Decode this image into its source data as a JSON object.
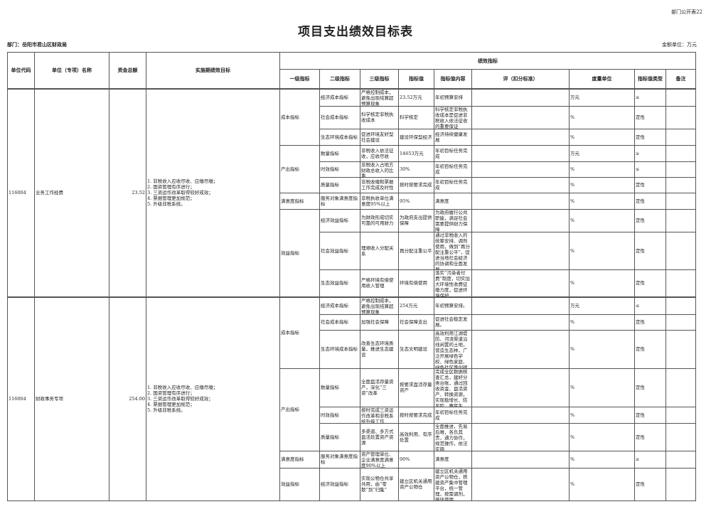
{
  "header": {
    "page_code": "部门公开表22",
    "title": "项目支出绩效目标表",
    "dept": "部门：岳阳市君山区财政局",
    "unit": "金额单位：万元"
  },
  "columns": {
    "code": "单位代码",
    "name": "单位（专项）名称",
    "amount": "资金总额",
    "goals": "实施期绩效目标",
    "indicators": "绩效指标",
    "l1": "一级指标",
    "l2": "二级指标",
    "l3": "三级指标",
    "value": "指标值",
    "content": "指标值内容",
    "criteria": "评（扣分标准）",
    "measure": "度量单位",
    "type": "指标值类型",
    "note": "备注"
  },
  "projects": [
    {
      "code": "116004",
      "name": "业务工作经费",
      "amount": "23.52",
      "goals": "1. 非税收入应收尽收、应缴尽缴；\n2. 国资管理有序进行；\n3. 三资运作改革取得较好成效；\n4. 票据管理更加规范；\n5. 升级非税系统。",
      "indicators": [
        {
          "l1": "成本指标",
          "rows": [
            {
              "l2": "经济成本指标",
              "l3": "严格控制成本，避免出现结算超预算现象",
              "value": "23.52万元",
              "content": "年初预算安排",
              "criteria": "",
              "measure": "万元",
              "type": "≤",
              "note": ""
            },
            {
              "l2": "社会成本指标",
              "l3": "科学核定非税执收成本",
              "value": "科学核定",
              "content": "科学核定非税执收成本是促进非税收入依法征收的重要保证",
              "criteria": "",
              "measure": "%",
              "type": "定性",
              "note": ""
            },
            {
              "l2": "生态环境成本指标",
              "l3": "促进环境友好型社会建设",
              "value": "建设环保型经济",
              "content": "经济持续健康发展",
              "criteria": "",
              "measure": "%",
              "type": "定性",
              "note": ""
            }
          ]
        },
        {
          "l1": "产出指标",
          "rows": [
            {
              "l2": "数量指标",
              "l3": "非税收入依法征收，应收尽收",
              "value": "14653万元",
              "content": "年初目标任务完成",
              "criteria": "",
              "measure": "万元",
              "type": "≥",
              "note": ""
            },
            {
              "l2": "时效指标",
              "l3": "非税收入占地方财政总收入的比重",
              "value": "30%",
              "content": "年初目标任务完成",
              "criteria": "",
              "measure": "%",
              "type": "≤",
              "note": ""
            },
            {
              "l2": "质量指标",
              "l3": "非税收缴和票据工作完成及时性",
              "value": "按时按要求完成",
              "content": "年初目标任务完成",
              "criteria": "",
              "measure": "%",
              "type": "定性",
              "note": ""
            }
          ]
        },
        {
          "l1": "满意度指标",
          "rows": [
            {
              "l2": "服务对象满意度指标",
              "l3": "非税执收单位满意度95%以上",
              "value": "95%",
              "content": "满意度",
              "criteria": "",
              "measure": "%",
              "type": "定性",
              "note": ""
            }
          ]
        },
        {
          "l1": "效益指标",
          "rows": [
            {
              "l2": "经济效益指标",
              "l3": "为财政形成切实可靠的可用财力",
              "value": "为政府支出提供保障",
              "content": "为政府履行公共职能，满足社会需要提供财力保障",
              "criteria": "",
              "measure": "%",
              "type": "定性",
              "note": ""
            },
            {
              "l2": "社会效益指标",
              "l3": "理顺收入分配关系",
              "value": "再分配注重公平",
              "content": "通过非税收入的统筹安排、调剂使用，做到“再分配注重公平”，促进当地社会经济的协调和全面发展",
              "criteria": "",
              "measure": "%",
              "type": "定性",
              "note": ""
            },
            {
              "l2": "生态效益指标",
              "l3": "严格环境有偿使用收入管理",
              "value": "环境有偿使用",
              "content": "落实“污染者付费”制度，切实加大环境性收费征缴力度，促进环境保护",
              "criteria": "",
              "measure": "%",
              "type": "定性",
              "note": ""
            }
          ]
        }
      ]
    },
    {
      "code": "116004",
      "name": "财政事务专项",
      "amount": "254.00",
      "goals": "1. 非税收入应收尽收、应缴尽缴；\n2. 国资管理有序进行；\n3. 三资运作改革取得较好成效；\n4. 票据管理更加规范；\n5. 升级非税系统。",
      "indicators": [
        {
          "l1": "成本指标",
          "rows": [
            {
              "l2": "经济成本指标",
              "l3": "严格控制成本，避免出现结算超预算现象",
              "value": "254万元",
              "content": "年初预算安排。",
              "criteria": "",
              "measure": "万元",
              "type": "≤",
              "note": ""
            },
            {
              "l2": "社会成本指标",
              "l3": "加强社会保障",
              "value": "社会保障支出",
              "content": "促进社会稳定发展。",
              "criteria": "",
              "measure": "%",
              "type": "定性",
              "note": ""
            },
            {
              "l2": "生态环境成本指标",
              "l3": "改善生态环境质量，推进生态建设",
              "value": "生态文明建设",
              "content": "高效利用江湖堤防、河流渠道沿线闲置的土地，营造生态林，广泛开展绿色学校、绿色家庭、绿色社区等创建",
              "criteria": "",
              "measure": "%",
              "type": "定性",
              "note": ""
            }
          ]
        },
        {
          "l1": "产出指标",
          "rows": [
            {
              "l2": "数量指标",
              "l3": "全面盘活存量资产，深化“三资”改革",
              "value": "按要求盘活存量资产",
              "content": "完成全区数据核查汇总，建好分类台账，通过回收资金、盘活资产、转换资源，实现稳增长、防风险、惠民生",
              "criteria": "",
              "measure": "%",
              "type": "定性",
              "note": ""
            },
            {
              "l2": "时效指标",
              "l3": "按时完成三资运作改革和非税系统升级工作",
              "value": "按时按要求完成",
              "content": "年初目标任务完成",
              "criteria": "",
              "measure": "%",
              "type": "定性",
              "note": ""
            },
            {
              "l2": "质量指标",
              "l3": "多渠道、多方式盘活处置资产资源",
              "value": "高效利用、有序处置",
              "content": "全面推进，先易后难，各负其责，通力协作，规范操作，依法实施",
              "criteria": "",
              "measure": "%",
              "type": "定性",
              "note": ""
            }
          ]
        },
        {
          "l1": "满意度指标",
          "rows": [
            {
              "l2": "服务对象满意度指标",
              "l3": "资产管理单位、企业满意度满意度90%以上",
              "value": "90%",
              "content": "满意度",
              "criteria": "",
              "measure": "%",
              "type": "≥",
              "note": ""
            }
          ]
        },
        {
          "l1": "效益指标",
          "rows": [
            {
              "l2": "经济效益指标",
              "l3": "实现公物仓共享共用，由“零散”到“归集”",
              "value": "建立区机关通用资产公物仓",
              "content": "建立区机关通用资产公物仓，搭建资产集中管理平台，统一管理，按需调剂，循环使用",
              "criteria": "",
              "measure": "%",
              "type": "定性",
              "note": ""
            }
          ]
        }
      ]
    }
  ]
}
